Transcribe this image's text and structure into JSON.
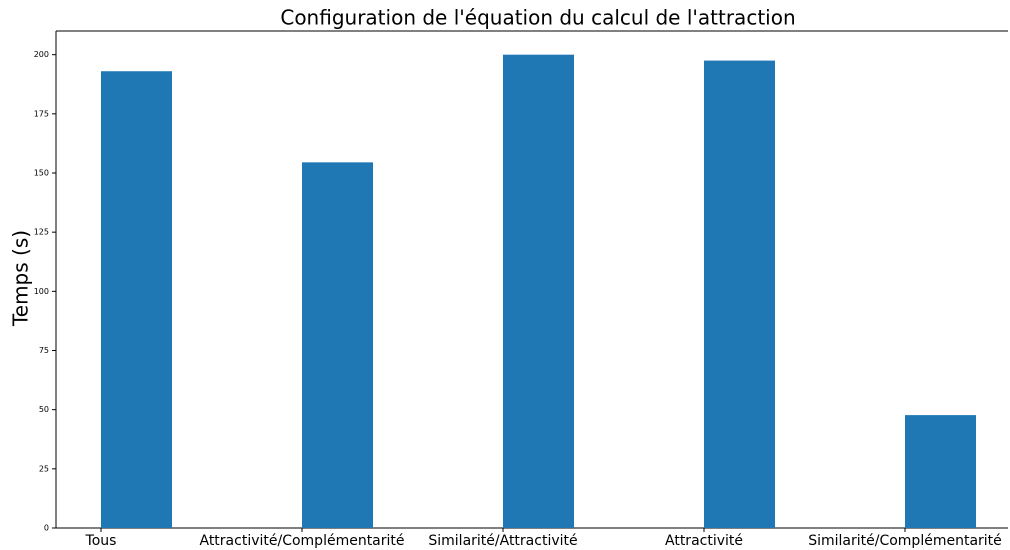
{
  "chart_data": {
    "type": "bar",
    "title": "Configuration de l'équation du calcul de l'attraction",
    "y_label": "Temps (s)",
    "categories": [
      "Tous",
      "Attractivité/Complémentarité",
      "Similarité/Attractivité",
      "Attractivité",
      "Similarité/Complémentarité"
    ],
    "values": [
      193,
      154.5,
      200,
      197.5,
      47.7
    ],
    "color": "#1f77b4",
    "ylim": [
      0,
      210
    ],
    "yticks": [
      0,
      25,
      50,
      75,
      100,
      125,
      150,
      175,
      200
    ],
    "grid": false
  }
}
